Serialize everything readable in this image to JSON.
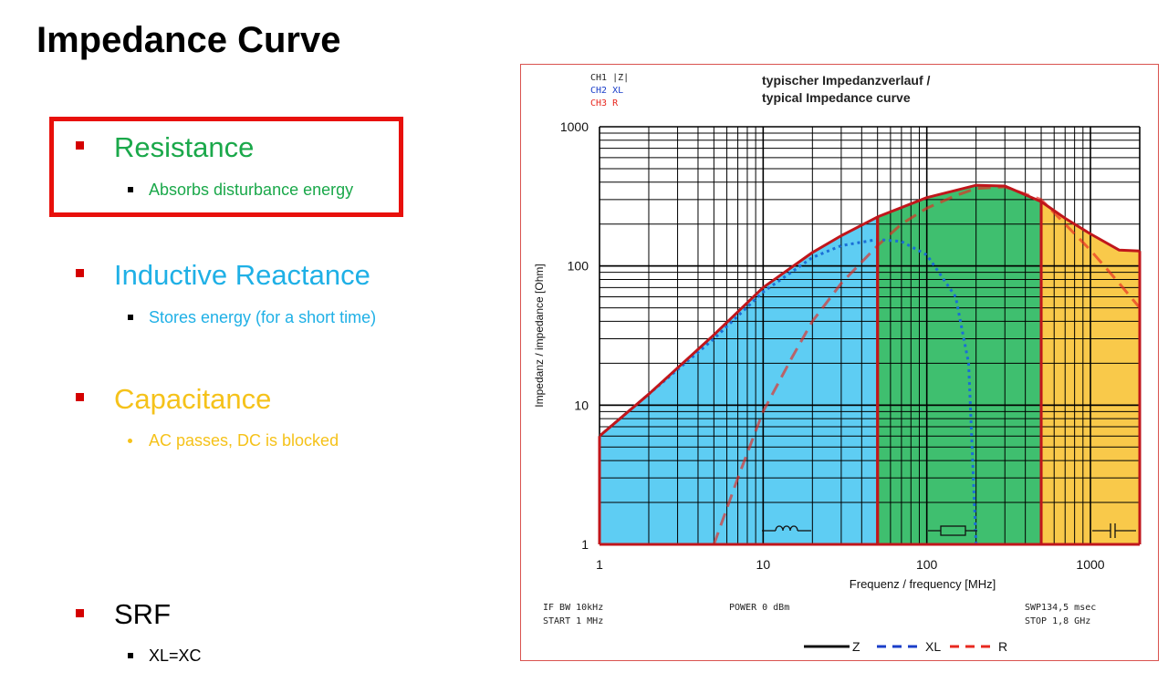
{
  "slide": {
    "title": "Impedance Curve"
  },
  "bullets": [
    {
      "label": "Resistance",
      "sub": "Absorbs disturbance energy",
      "color": "#1aa84a"
    },
    {
      "label": "Inductive Reactance",
      "sub": "Stores energy (for a short time)",
      "color": "#1fb0e6"
    },
    {
      "label": "Capacitance",
      "sub": "AC passes,  DC is blocked",
      "color": "#f5c21a"
    },
    {
      "label": "SRF",
      "sub": "XL=XC",
      "color": "#000000"
    }
  ],
  "chart_data": {
    "type": "line",
    "title_line1": "typischer Impedanzverlauf /",
    "title_line2": "typical Impedance curve",
    "channels": [
      {
        "label": "CH1 |Z|",
        "color": "#222222"
      },
      {
        "label": "CH2 XL",
        "color": "#1a3ec9"
      },
      {
        "label": "CH3 R",
        "color": "#e8281f"
      }
    ],
    "xlabel": "Frequenz / frequency [MHz]",
    "ylabel": "Impedanz / impedance [Ohm]",
    "x_scale": "log",
    "y_scale": "log",
    "xlim": [
      1,
      2000
    ],
    "ylim": [
      1,
      1000
    ],
    "x_ticks": [
      1,
      10,
      100,
      1000
    ],
    "x_tick_labels": [
      "1",
      "10",
      "100",
      "1000"
    ],
    "y_ticks": [
      1,
      10,
      100,
      1000
    ],
    "y_tick_labels": [
      "1",
      "10",
      "100",
      "1000"
    ],
    "grid": true,
    "regions": [
      {
        "name": "inductive",
        "x_range": [
          1,
          50
        ],
        "color": "#5ecdf3"
      },
      {
        "name": "resistive",
        "x_range": [
          50,
          500
        ],
        "color": "#3fbf6f"
      },
      {
        "name": "capacitive",
        "x_range": [
          500,
          2000
        ],
        "color": "#f9c94a"
      }
    ],
    "series": [
      {
        "name": "Z",
        "style": "solid",
        "color": "#c0161b",
        "x": [
          1,
          2,
          5,
          10,
          20,
          30,
          50,
          100,
          200,
          300,
          500,
          700,
          1000,
          1500,
          2000
        ],
        "y": [
          6,
          12,
          32,
          70,
          125,
          165,
          225,
          310,
          380,
          375,
          290,
          220,
          170,
          130,
          128
        ]
      },
      {
        "name": "XL",
        "style": "dotted",
        "color": "#1a6fd6",
        "x": [
          1,
          2,
          5,
          10,
          20,
          30,
          50,
          70,
          100,
          150,
          180,
          200
        ],
        "y": [
          6,
          12,
          30,
          65,
          115,
          140,
          155,
          150,
          120,
          60,
          20,
          1
        ]
      },
      {
        "name": "R",
        "style": "dashed",
        "color": "#e8281f",
        "x": [
          5,
          7,
          10,
          15,
          20,
          30,
          50,
          70,
          100,
          150,
          200,
          300,
          500,
          700,
          1000,
          1500,
          2000
        ],
        "y": [
          1,
          3,
          9,
          22,
          40,
          75,
          140,
          200,
          260,
          320,
          360,
          370,
          300,
          200,
          130,
          75,
          50
        ]
      }
    ],
    "footer": {
      "left_line1": "IF BW 10kHz",
      "left_line2": "START 1 MHz",
      "center_line1": "POWER 0 dBm",
      "right_line1": "SWP134,5 msec",
      "right_line2": "STOP 1,8 GHz"
    },
    "legend": [
      {
        "label": "Z",
        "color": "#111111",
        "style": "solid"
      },
      {
        "label": "XL",
        "color": "#1a3ec9",
        "style": "dashed"
      },
      {
        "label": "R",
        "color": "#e8281f",
        "style": "dashed"
      }
    ],
    "legend_placement": "bottom"
  }
}
